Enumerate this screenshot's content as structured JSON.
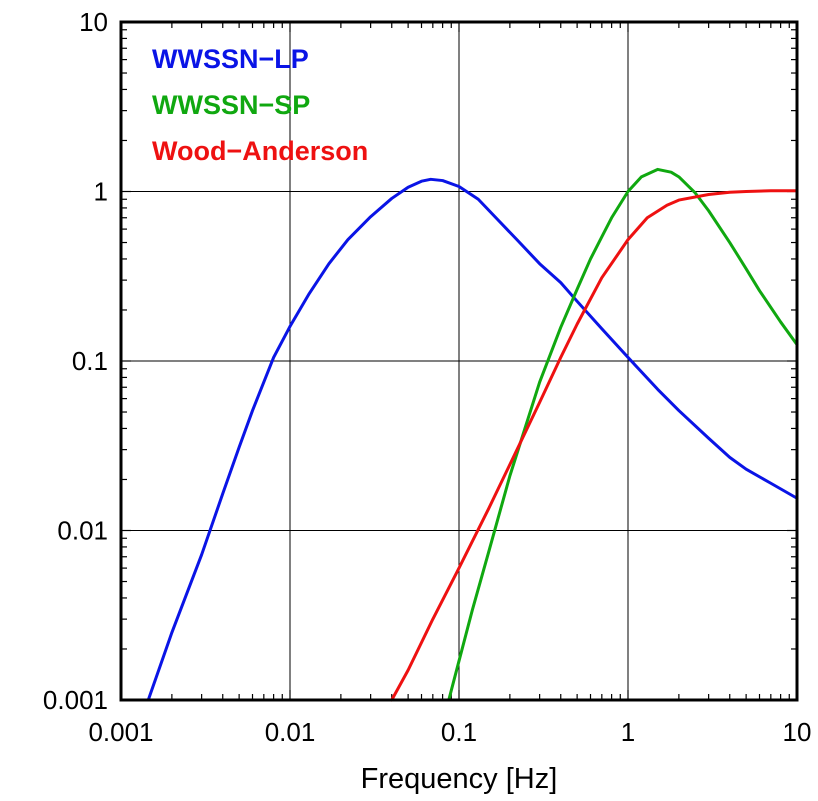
{
  "chart_data": {
    "type": "line",
    "title": "",
    "xlabel": "Frequency [Hz]",
    "ylabel": "",
    "x_scale": "log",
    "y_scale": "log",
    "xlim": [
      0.001,
      10
    ],
    "ylim": [
      0.001,
      10
    ],
    "x_ticks": [
      "0.001",
      "0.01",
      "0.1",
      "1",
      "10"
    ],
    "y_ticks": [
      "0.001",
      "0.01",
      "0.1",
      "1",
      "10"
    ],
    "grid": true,
    "legend_position": "top-left",
    "series": [
      {
        "name": "WWSSN−LP",
        "color": "#0a14e6",
        "x": [
          0.00145,
          0.002,
          0.003,
          0.004,
          0.005,
          0.006,
          0.008,
          0.01,
          0.013,
          0.017,
          0.022,
          0.03,
          0.04,
          0.05,
          0.06,
          0.068,
          0.08,
          0.1,
          0.13,
          0.17,
          0.22,
          0.3,
          0.4,
          0.5,
          0.7,
          1,
          1.5,
          2,
          3,
          4,
          5,
          7,
          10
        ],
        "y": [
          0.001,
          0.0025,
          0.0072,
          0.0165,
          0.031,
          0.051,
          0.105,
          0.16,
          0.25,
          0.375,
          0.52,
          0.71,
          0.91,
          1.06,
          1.15,
          1.18,
          1.16,
          1.07,
          0.9,
          0.68,
          0.52,
          0.375,
          0.29,
          0.225,
          0.155,
          0.105,
          0.068,
          0.051,
          0.035,
          0.027,
          0.023,
          0.019,
          0.0155
        ]
      },
      {
        "name": "WWSSN−SP",
        "color": "#10a810",
        "x": [
          0.087,
          0.1,
          0.12,
          0.15,
          0.2,
          0.3,
          0.4,
          0.5,
          0.6,
          0.7,
          0.8,
          1,
          1.2,
          1.5,
          1.8,
          2,
          2.5,
          3,
          4,
          5,
          6,
          8,
          10
        ],
        "y": [
          0.001,
          0.0017,
          0.0034,
          0.0075,
          0.021,
          0.075,
          0.158,
          0.265,
          0.4,
          0.54,
          0.7,
          1.0,
          1.22,
          1.35,
          1.3,
          1.22,
          0.98,
          0.77,
          0.5,
          0.35,
          0.26,
          0.17,
          0.125
        ]
      },
      {
        "name": "Wood−Anderson",
        "color": "#ee1111",
        "x": [
          0.04,
          0.05,
          0.07,
          0.1,
          0.15,
          0.2,
          0.3,
          0.4,
          0.5,
          0.7,
          1,
          1.3,
          1.7,
          2,
          3,
          4,
          5,
          7,
          10
        ],
        "y": [
          0.001,
          0.0015,
          0.003,
          0.006,
          0.0135,
          0.0245,
          0.057,
          0.105,
          0.165,
          0.31,
          0.52,
          0.7,
          0.83,
          0.89,
          0.96,
          0.99,
          1.0,
          1.01,
          1.01
        ]
      }
    ]
  }
}
